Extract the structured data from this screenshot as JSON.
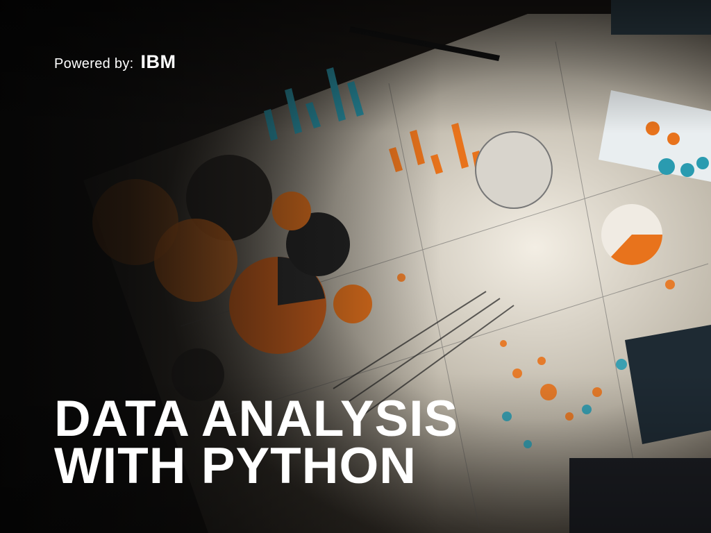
{
  "header": {
    "powered_label": "Powered by:",
    "brand": "IBM"
  },
  "title": {
    "line1": "DATA ANALYSIS",
    "line2": "WITH PYTHON"
  },
  "colors": {
    "accent_orange": "#e8731c",
    "accent_teal": "#2a9bb0",
    "paper": "#e9e4da",
    "text": "#ffffff"
  }
}
